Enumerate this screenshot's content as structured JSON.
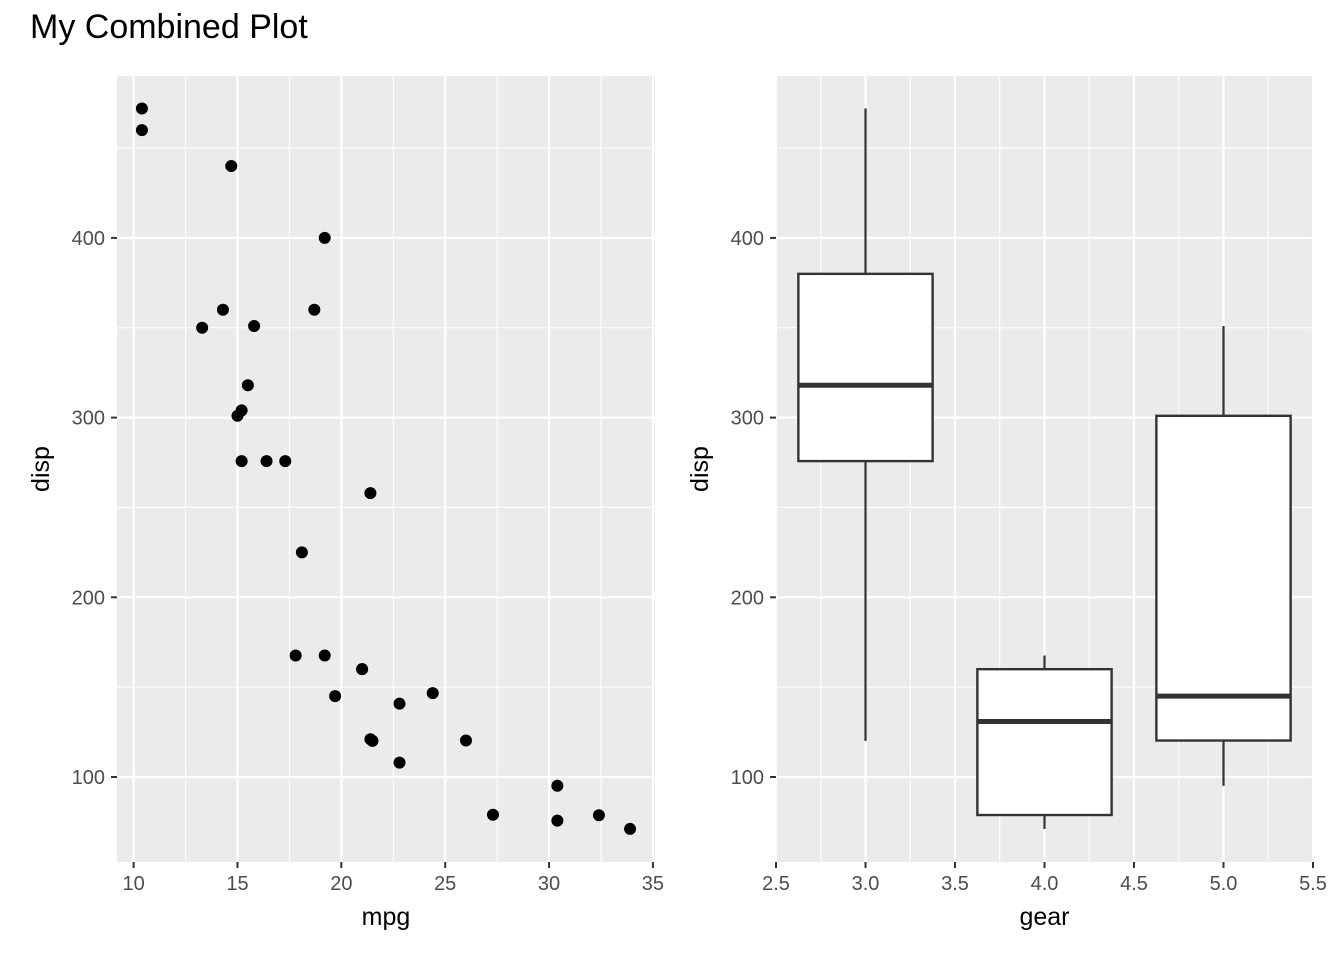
{
  "title": "My Combined Plot",
  "chart_data": [
    {
      "type": "scatter",
      "xlabel": "mpg",
      "ylabel": "disp",
      "xlim": [
        9.2,
        35.1
      ],
      "ylim": [
        52.7,
        490.1
      ],
      "xticks": [
        10,
        15,
        20,
        25,
        30,
        35
      ],
      "yticks": [
        100,
        200,
        300,
        400
      ],
      "grid": true,
      "panel_color": "#ebebeb",
      "point_color": "#000000",
      "points": [
        {
          "x": 21.0,
          "y": 160
        },
        {
          "x": 21.0,
          "y": 160
        },
        {
          "x": 22.8,
          "y": 108
        },
        {
          "x": 21.4,
          "y": 258
        },
        {
          "x": 18.7,
          "y": 360
        },
        {
          "x": 18.1,
          "y": 225
        },
        {
          "x": 14.3,
          "y": 360
        },
        {
          "x": 24.4,
          "y": 146.7
        },
        {
          "x": 22.8,
          "y": 140.8
        },
        {
          "x": 19.2,
          "y": 167.6
        },
        {
          "x": 17.8,
          "y": 167.6
        },
        {
          "x": 16.4,
          "y": 275.8
        },
        {
          "x": 17.3,
          "y": 275.8
        },
        {
          "x": 15.2,
          "y": 275.8
        },
        {
          "x": 10.4,
          "y": 472
        },
        {
          "x": 10.4,
          "y": 460
        },
        {
          "x": 14.7,
          "y": 440
        },
        {
          "x": 32.4,
          "y": 78.7
        },
        {
          "x": 30.4,
          "y": 75.7
        },
        {
          "x": 33.9,
          "y": 71.1
        },
        {
          "x": 21.5,
          "y": 120.1
        },
        {
          "x": 15.5,
          "y": 318
        },
        {
          "x": 15.2,
          "y": 304
        },
        {
          "x": 13.3,
          "y": 350
        },
        {
          "x": 19.2,
          "y": 400
        },
        {
          "x": 27.3,
          "y": 79
        },
        {
          "x": 26.0,
          "y": 120.3
        },
        {
          "x": 30.4,
          "y": 95.1
        },
        {
          "x": 15.8,
          "y": 351
        },
        {
          "x": 19.7,
          "y": 145
        },
        {
          "x": 15.0,
          "y": 301
        },
        {
          "x": 21.4,
          "y": 121
        }
      ]
    },
    {
      "type": "boxplot",
      "xlabel": "gear",
      "ylabel": "disp",
      "xlim": [
        2.5,
        5.5
      ],
      "ylim": [
        52.7,
        490.1
      ],
      "xticks": [
        "2.5",
        "3.0",
        "3.5",
        "4.0",
        "4.5",
        "5.0",
        "5.5"
      ],
      "yticks": [
        100,
        200,
        300,
        400
      ],
      "grid": true,
      "panel_color": "#ebebeb",
      "box_fill": "#ffffff",
      "box_stroke": "#333333",
      "boxes": [
        {
          "x": 3.0,
          "min": 120.1,
          "q1": 275.8,
          "median": 318,
          "q3": 380,
          "max": 472
        },
        {
          "x": 4.0,
          "min": 71.1,
          "q1": 78.85,
          "median": 130.9,
          "q3": 160,
          "max": 167.6
        },
        {
          "x": 5.0,
          "min": 95.1,
          "q1": 120.3,
          "median": 145,
          "q3": 301,
          "max": 351
        }
      ]
    }
  ]
}
